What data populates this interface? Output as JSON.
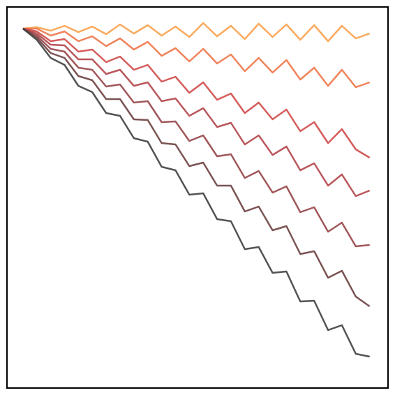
{
  "chart_data": {
    "type": "line",
    "x": [
      0,
      4,
      8,
      12,
      16,
      20,
      24,
      28,
      32,
      36,
      40,
      44,
      48,
      52,
      56,
      60,
      64,
      68,
      72,
      76,
      80,
      84,
      88,
      92,
      96,
      100
    ],
    "xlim": [
      -4.6,
      105.3
    ],
    "ylim": [
      -515,
      31
    ],
    "grid": false,
    "series": [
      {
        "color": "#f9a04a",
        "values": [
          0,
          2,
          -3,
          4,
          -5,
          3,
          -8,
          6,
          -7,
          5,
          -10,
          3,
          -12,
          8,
          -11,
          4,
          -15,
          7,
          -12,
          6,
          -16,
          5,
          -18,
          4,
          -14,
          -7
        ]
      },
      {
        "color": "#ee7548",
        "values": [
          0,
          0,
          -10,
          -4,
          -18,
          -11,
          -25,
          -14,
          -30,
          -19,
          -39,
          -28,
          -47,
          -29,
          -50,
          -37,
          -61,
          -42,
          -63,
          -45,
          -73,
          -56,
          -82,
          -59,
          -84,
          -77
        ]
      },
      {
        "color": "#cf4a48",
        "values": [
          0,
          -4,
          -18,
          -15,
          -33,
          -30,
          -48,
          -40,
          -59,
          -52,
          -76,
          -69,
          -92,
          -77,
          -102,
          -93,
          -121,
          -106,
          -130,
          -116,
          -147,
          -134,
          -164,
          -144,
          -173,
          -185
        ]
      },
      {
        "color": "#b3454a",
        "values": [
          0,
          -7,
          -23,
          -24,
          -44,
          -44,
          -65,
          -59,
          -82,
          -77,
          -104,
          -100,
          -125,
          -114,
          -141,
          -135,
          -166,
          -153,
          -181,
          -169,
          -203,
          -193,
          -225,
          -209,
          -240,
          -232
        ]
      },
      {
        "color": "#974548",
        "values": [
          0,
          -10,
          -29,
          -33,
          -56,
          -59,
          -83,
          -80,
          -106,
          -104,
          -134,
          -133,
          -161,
          -153,
          -183,
          -180,
          -214,
          -204,
          -235,
          -226,
          -263,
          -256,
          -291,
          -278,
          -312,
          -310
        ]
      },
      {
        "color": "#6d4040",
        "values": [
          0,
          -13,
          -35,
          -42,
          -68,
          -74,
          -101,
          -101,
          -130,
          -131,
          -164,
          -166,
          -197,
          -192,
          -225,
          -225,
          -262,
          -255,
          -289,
          -283,
          -323,
          -319,
          -357,
          -347,
          -384,
          -398
        ]
      },
      {
        "color": "#404040",
        "values": [
          0,
          -16,
          -42,
          -52,
          -82,
          -91,
          -121,
          -125,
          -157,
          -162,
          -198,
          -203,
          -238,
          -236,
          -273,
          -276,
          -316,
          -313,
          -350,
          -348,
          -391,
          -390,
          -432,
          -425,
          -466,
          -470
        ]
      }
    ]
  }
}
